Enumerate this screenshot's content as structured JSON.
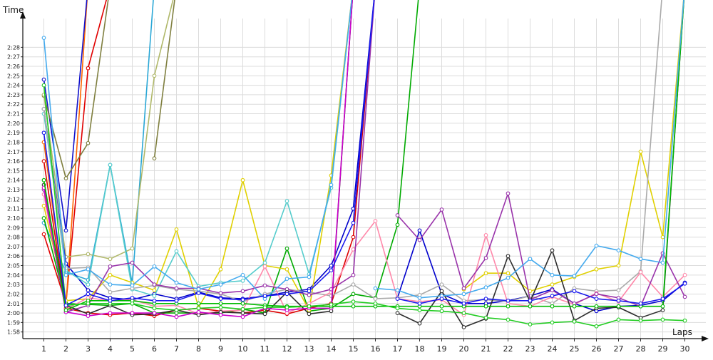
{
  "chart_data": {
    "type": "line",
    "xlabel": "Laps",
    "ylabel": "Time",
    "y_unit": "lap time (m:ss)",
    "x_range": [
      1,
      30
    ],
    "y_range_seconds": [
      117.3,
      149.0
    ],
    "grid": true,
    "legend": "none",
    "x_ticks": [
      "1",
      "2",
      "3",
      "4",
      "5",
      "6",
      "7",
      "8",
      "9",
      "10",
      "11",
      "12",
      "13",
      "14",
      "15",
      "16",
      "17",
      "18",
      "19",
      "20",
      "21",
      "22",
      "23",
      "24",
      "25",
      "26",
      "27",
      "28",
      "29",
      "30"
    ],
    "y_ticks": [
      "1:58",
      "1:59",
      "2:00",
      "2:01",
      "2:02",
      "2:03",
      "2:04",
      "2:05",
      "2:06",
      "2:07",
      "2:08",
      "2:09",
      "2:10",
      "2:11",
      "2:12",
      "2:13",
      "2:14",
      "2:15",
      "2:16",
      "2:17",
      "2:18",
      "2:19",
      "2:20",
      "2:21",
      "2:22",
      "2:23",
      "2:24",
      "2:25",
      "2:26",
      "2:27",
      "2:28"
    ],
    "x": [
      1,
      2,
      3,
      4,
      5,
      6,
      7,
      8,
      9,
      10,
      11,
      12,
      13,
      14,
      15,
      16,
      17,
      18,
      19,
      20,
      21,
      22,
      23,
      24,
      25,
      26,
      27,
      28,
      29,
      30
    ],
    "series": [
      {
        "color": "#e00000",
        "values": [
          128.3,
          121.0,
          145.8,
          null,
          null,
          null,
          null,
          null,
          null,
          null,
          null,
          null,
          null,
          null,
          null,
          null,
          null,
          null,
          null,
          null,
          null,
          null,
          null,
          null,
          null,
          null,
          null,
          null,
          null,
          null
        ]
      },
      {
        "color": "#ff6600",
        "values": [
          138.0,
          120.8,
          null,
          null,
          null,
          null,
          null,
          null,
          null,
          null,
          null,
          null,
          null,
          null,
          null,
          null,
          null,
          null,
          null,
          null,
          null,
          null,
          null,
          null,
          null,
          null,
          null,
          null,
          null,
          null
        ]
      },
      {
        "color": "#1111cc",
        "values": [
          144.6,
          128.7,
          null,
          null,
          null,
          null,
          null,
          null,
          null,
          null,
          null,
          null,
          null,
          null,
          null,
          null,
          null,
          null,
          null,
          null,
          null,
          null,
          null,
          null,
          null,
          null,
          null,
          null,
          null,
          null
        ]
      },
      {
        "color": "#7f7f3f",
        "values": [
          142.9,
          134.2,
          137.9,
          null,
          null,
          136.3,
          null,
          null,
          null,
          null,
          null,
          null,
          null,
          null,
          null,
          null,
          null,
          null,
          null,
          null,
          null,
          null,
          null,
          null,
          null,
          null,
          null,
          null,
          null,
          null
        ]
      },
      {
        "color": "#2aa7d6",
        "values": [
          129.5,
          124.3,
          123.5,
          135.6,
          123.1,
          null,
          null,
          null,
          null,
          null,
          null,
          null,
          null,
          null,
          null,
          null,
          null,
          null,
          null,
          null,
          null,
          null,
          null,
          null,
          null,
          null,
          null,
          null,
          null,
          null
        ]
      },
      {
        "color": "#b0b86a",
        "values": [
          143.0,
          125.9,
          126.2,
          125.7,
          126.8,
          145.0,
          null,
          null,
          null,
          null,
          null,
          null,
          null,
          null,
          null,
          null,
          null,
          null,
          null,
          null,
          null,
          null,
          null,
          null,
          null,
          null,
          null,
          null,
          null,
          null
        ]
      },
      {
        "color": "#dd0000",
        "values": [
          136.0,
          120.5,
          120.0,
          119.8,
          120.0,
          119.7,
          120.3,
          120.5,
          120.2,
          120.0,
          120.3,
          119.9,
          120.5,
          121.0,
          128.0,
          null,
          null,
          null,
          null,
          null,
          null,
          null,
          null,
          null,
          null,
          null,
          null,
          null,
          null,
          null
        ]
      },
      {
        "color": "#00aa00",
        "values": [
          130.0,
          121.0,
          120.9,
          120.8,
          121.0,
          120.0,
          120.0,
          120.0,
          120.0,
          120.4,
          120.0,
          126.8,
          120.2,
          120.5,
          122.0,
          121.6,
          129.3,
          null,
          null,
          null,
          null,
          null,
          null,
          null,
          null,
          null,
          null,
          null,
          null,
          null
        ]
      },
      {
        "color": "#0000cc",
        "values": [
          141.5,
          125.2,
          122.4,
          121.6,
          121.4,
          122.0,
          121.5,
          122.2,
          121.6,
          121.5,
          121.8,
          122.2,
          122.5,
          125.0,
          131.0,
          null,
          121.6,
          128.7,
          122.0,
          121.0,
          121.0,
          121.3,
          121.8,
          122.5,
          121.0,
          120.2,
          120.7,
          120.8,
          121.3,
          123.2
        ]
      },
      {
        "color": "#e0d000",
        "values": [
          131.3,
          121.3,
          121.5,
          124.0,
          123.2,
          122.4,
          128.8,
          120.6,
          124.6,
          134.0,
          125.0,
          124.6,
          120.3,
          134.5,
          null,
          null,
          null,
          null,
          null,
          122.5,
          124.2,
          124.2,
          122.3,
          123.0,
          123.8,
          124.6,
          125.0,
          137.0,
          128.0,
          null
        ]
      },
      {
        "color": "#55cccc",
        "values": [
          141.0,
          124.5,
          123.0,
          135.6,
          122.5,
          121.8,
          126.5,
          122.8,
          123.2,
          123.4,
          125.3,
          131.8,
          124.1,
          133.2,
          null,
          null,
          null,
          null,
          null,
          null,
          null,
          null,
          null,
          null,
          null,
          null,
          null,
          null,
          null,
          null
        ]
      },
      {
        "color": "#aaaaaa",
        "values": [
          141.5,
          124.7,
          124.8,
          122.2,
          122.6,
          122.9,
          122.5,
          122.3,
          122.0,
          121.2,
          122.0,
          122.5,
          122.2,
          121.8,
          123.0,
          121.5,
          121.6,
          121.9,
          123.0,
          121.3,
          121.4,
          121.2,
          121.8,
          121.0,
          122.6,
          122.3,
          122.4,
          124.4,
          null,
          null
        ]
      },
      {
        "color": "#ff88aa",
        "values": [
          132.5,
          120.4,
          121.6,
          121.3,
          121.4,
          120.7,
          120.8,
          119.9,
          120.2,
          120.3,
          124.9,
          120.0,
          121.0,
          122.2,
          126.7,
          129.7,
          121.5,
          121.2,
          121.4,
          119.8,
          128.2,
          121.0,
          120.7,
          121.7,
          120.9,
          122.1,
          121.2,
          124.3,
          121.7,
          124.0
        ]
      },
      {
        "color": "#9933aa",
        "values": [
          133.0,
          120.1,
          120.8,
          124.9,
          125.3,
          123.0,
          122.6,
          122.6,
          122.1,
          122.3,
          122.9,
          122.5,
          121.9,
          122.5,
          124.0,
          null,
          130.3,
          127.7,
          130.9,
          122.6,
          125.8,
          132.6,
          121.4,
          122.4,
          121.0,
          122.0,
          121.6,
          120.7,
          126.3,
          121.7
        ]
      },
      {
        "color": "#2d2d2d",
        "values": [
          133.5,
          120.8,
          119.9,
          120.8,
          119.8,
          119.9,
          120.3,
          119.8,
          120.1,
          120.0,
          119.9,
          122.2,
          119.9,
          120.2,
          null,
          null,
          120.0,
          118.9,
          122.3,
          118.5,
          119.4,
          126.0,
          121.2,
          126.6,
          119.2,
          120.5,
          120.6,
          119.5,
          120.3,
          null
        ]
      },
      {
        "color": "#cc00cc",
        "values": [
          133.2,
          120.1,
          119.7,
          120.0,
          120.0,
          120.0,
          119.6,
          120.1,
          119.8,
          119.6,
          120.5,
          120.3,
          120.5,
          120.5,
          null,
          null,
          null,
          null,
          null,
          null,
          null,
          null,
          null,
          null,
          null,
          null,
          null,
          null,
          null,
          null
        ]
      },
      {
        "color": "#00bb00",
        "values": [
          134.0,
          120.3,
          121.3,
          121.3,
          121.3,
          121.0,
          121.0,
          121.0,
          121.0,
          121.0,
          120.8,
          120.7,
          120.7,
          120.7,
          120.7,
          120.7,
          120.7,
          120.7,
          120.7,
          120.7,
          120.7,
          120.7,
          120.7,
          120.7,
          120.7,
          120.7,
          120.7,
          120.7,
          120.7,
          null
        ]
      },
      {
        "color": "#22cc22",
        "values": [
          144.0,
          120.8,
          121.0,
          121.0,
          121.0,
          120.5,
          120.3,
          120.5,
          120.6,
          120.4,
          120.6,
          120.6,
          120.7,
          120.9,
          121.2,
          121.0,
          120.5,
          120.3,
          120.2,
          120.0,
          119.5,
          119.3,
          118.8,
          119.0,
          119.1,
          118.6,
          119.3,
          119.2,
          119.3,
          119.2
        ]
      },
      {
        "color": "#44aaee",
        "values": [
          149.0,
          124.0,
          124.6,
          123.0,
          122.9,
          124.9,
          123.2,
          122.5,
          123.0,
          124.0,
          121.5,
          123.6,
          123.8,
          133.5,
          null,
          122.6,
          122.4,
          121.6,
          121.8,
          122.0,
          122.7,
          123.7,
          125.7,
          124.0,
          123.9,
          127.1,
          126.6,
          125.7,
          125.3,
          null
        ]
      },
      {
        "color": "#1a1aee",
        "values": [
          139.0,
          120.8,
          122.0,
          121.3,
          121.6,
          121.3,
          121.3,
          122.1,
          121.5,
          121.4,
          121.8,
          122.0,
          122.3,
          124.5,
          129.5,
          null,
          121.5,
          121.0,
          121.5,
          121.0,
          121.5,
          121.3,
          121.3,
          121.8,
          122.3,
          121.5,
          121.3,
          121.0,
          121.5,
          123.1
        ]
      }
    ]
  }
}
